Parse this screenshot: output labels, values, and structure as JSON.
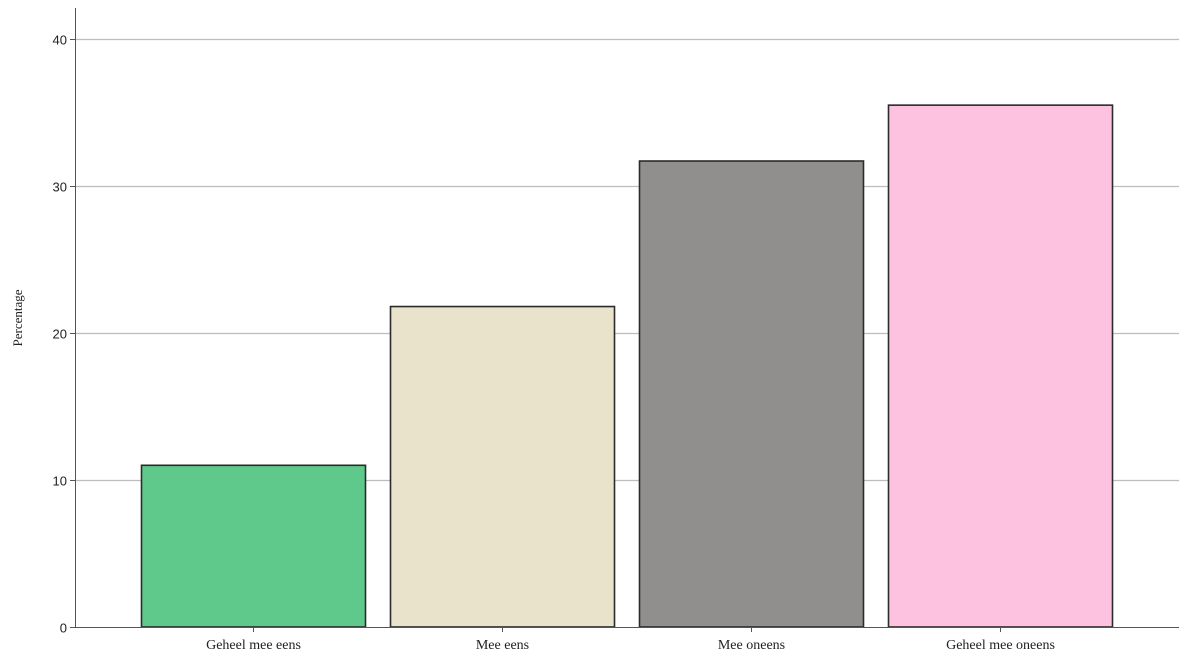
{
  "chart_data": {
    "type": "bar",
    "title": "",
    "xlabel": "",
    "ylabel": "Percentage",
    "categories": [
      "Geheel mee eens",
      "Mee eens",
      "Mee oneens",
      "Geheel mee oneens"
    ],
    "values": [
      11.0,
      21.8,
      31.7,
      35.5
    ],
    "colors": [
      "#5ec98a",
      "#e9e3cc",
      "#918e8e",
      "#fcc2e0"
    ],
    "bar_outline_color": "#2b2b2b",
    "gridline_color": "#bdbdbd",
    "axis_color": "#555555",
    "ylim": [
      0,
      42
    ],
    "yticks": [
      0,
      10,
      20,
      30,
      40
    ],
    "grid": true,
    "legend": "none"
  }
}
